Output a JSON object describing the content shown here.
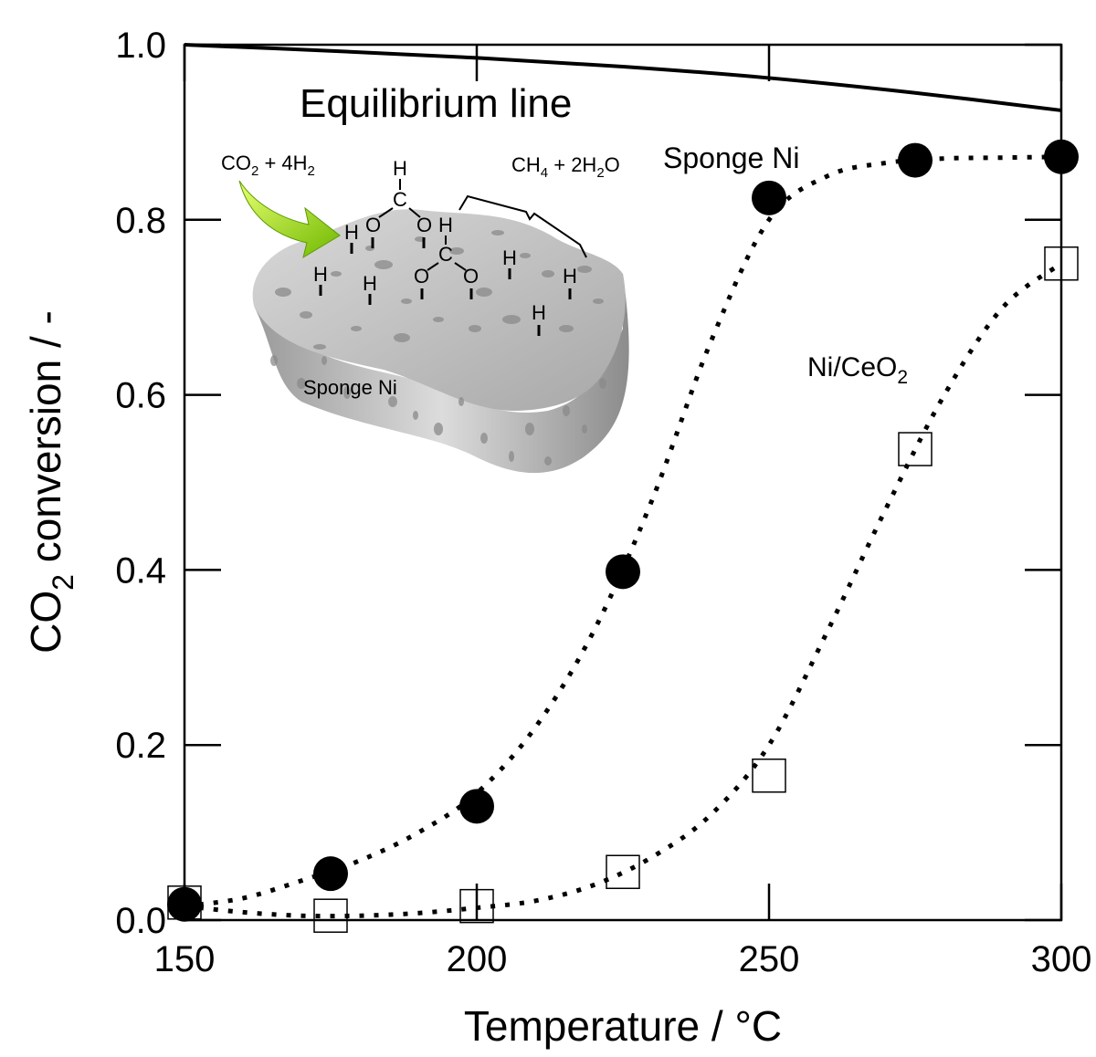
{
  "chart_data": {
    "type": "scatter",
    "title": "",
    "xlabel": "Temperature / °C",
    "ylabel_main": "CO",
    "ylabel_sub": "2",
    "ylabel_rest": " conversion / -",
    "xlim": [
      150,
      300
    ],
    "ylim": [
      0.0,
      1.0
    ],
    "x_ticks": [
      150,
      200,
      250,
      300
    ],
    "x_tick_labels": [
      "150",
      "200",
      "250",
      "300"
    ],
    "y_ticks": [
      0.0,
      0.2,
      0.4,
      0.6,
      0.8,
      1.0
    ],
    "y_tick_labels": [
      "0.0",
      "0.2",
      "0.4",
      "0.6",
      "0.8",
      "1.0"
    ],
    "grid": false,
    "series": [
      {
        "name": "Sponge Ni",
        "marker": "filled-circle",
        "x": [
          150,
          175,
          200,
          225,
          250,
          275,
          300
        ],
        "y": [
          0.018,
          0.053,
          0.13,
          0.398,
          0.825,
          0.868,
          0.872
        ]
      },
      {
        "name": "Ni/CeO2",
        "marker": "open-square",
        "x": [
          150,
          175,
          200,
          225,
          250,
          275,
          300
        ],
        "y": [
          0.02,
          0.005,
          0.016,
          0.055,
          0.165,
          0.538,
          0.75
        ]
      }
    ],
    "equilibrium_line": {
      "x": [
        150,
        175,
        200,
        225,
        250,
        275,
        300
      ],
      "y": [
        1.0,
        0.993,
        0.985,
        0.975,
        0.962,
        0.945,
        0.925
      ]
    },
    "fit_curves": {
      "sponge_ni": {
        "x": [
          150,
          160,
          170,
          180,
          190,
          200,
          210,
          220,
          230,
          240,
          250,
          260,
          270,
          280,
          290,
          300
        ],
        "y": [
          0.016,
          0.025,
          0.045,
          0.068,
          0.1,
          0.145,
          0.22,
          0.33,
          0.48,
          0.66,
          0.8,
          0.85,
          0.865,
          0.87,
          0.871,
          0.872
        ]
      },
      "ni_ceo2": {
        "x": [
          150,
          160,
          170,
          180,
          190,
          200,
          210,
          220,
          230,
          240,
          250,
          260,
          270,
          280,
          290,
          300
        ],
        "y": [
          0.016,
          0.009,
          0.005,
          0.005,
          0.008,
          0.014,
          0.022,
          0.04,
          0.072,
          0.12,
          0.2,
          0.33,
          0.47,
          0.6,
          0.7,
          0.75
        ]
      }
    },
    "annotations": {
      "equilibrium": "Equilibrium line",
      "sponge_ni": "Sponge Ni",
      "ni_ceo2_main": "Ni/CeO",
      "ni_ceo2_sub": "2"
    }
  },
  "inset": {
    "reactant_main": "CO",
    "reactant_sub": "2",
    "reactant_rest": " + 4H",
    "reactant_sub2": "2",
    "product_main": "CH",
    "product_sub": "4",
    "product_rest": " + 2H",
    "product_sub2": "2",
    "product_end": "O",
    "sponge_label": "Sponge Ni",
    "atom_h": "H",
    "atom_c": "C",
    "atom_o": "O",
    "arrow_color": "#8fd400",
    "sponge_color": "#a9a9a9"
  }
}
